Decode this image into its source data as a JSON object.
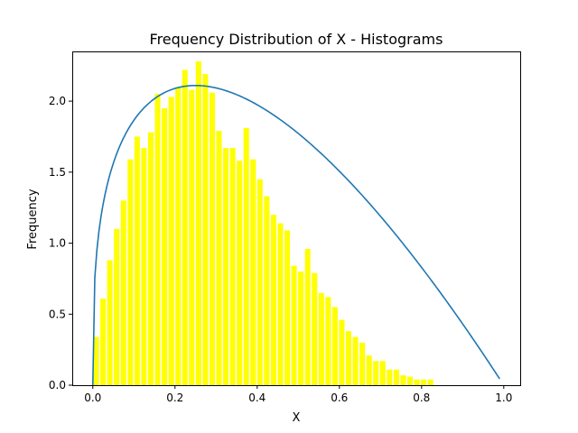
{
  "chart_data": {
    "type": "bar",
    "title": "Frequency Distribution of X - Histograms",
    "xlabel": "X",
    "ylabel": "Frequency",
    "xlim": [
      -0.05,
      1.04
    ],
    "ylim": [
      0,
      2.35
    ],
    "x_ticks": [
      0.0,
      0.2,
      0.4,
      0.6,
      0.8,
      1.0
    ],
    "x_tick_labels": [
      "0.0",
      "0.2",
      "0.4",
      "0.6",
      "0.8",
      "1.0"
    ],
    "y_ticks": [
      0.0,
      0.5,
      1.0,
      1.5,
      2.0
    ],
    "y_tick_labels": [
      "0.0",
      "0.5",
      "1.0",
      "1.5",
      "2.0"
    ],
    "grid": false,
    "bar_color": "#ffff00",
    "curve_color": "#1f77b4",
    "bins": {
      "start": 0.0,
      "width": 0.0166,
      "values": [
        0.34,
        0.61,
        0.88,
        1.1,
        1.3,
        1.59,
        1.75,
        1.67,
        1.78,
        2.05,
        1.95,
        2.03,
        2.1,
        2.22,
        2.08,
        2.28,
        2.19,
        2.06,
        1.79,
        1.67,
        1.67,
        1.58,
        1.81,
        1.59,
        1.45,
        1.33,
        1.2,
        1.14,
        1.09,
        0.84,
        0.8,
        0.96,
        0.79,
        0.65,
        0.62,
        0.55,
        0.46,
        0.38,
        0.34,
        0.3,
        0.21,
        0.17,
        0.17,
        0.11,
        0.11,
        0.07,
        0.06,
        0.04,
        0.04,
        0.04
      ]
    },
    "curve": {
      "x_start": 0.0,
      "x_end": 0.99,
      "peak_x": 0.25,
      "peak_y": 2.11
    }
  }
}
